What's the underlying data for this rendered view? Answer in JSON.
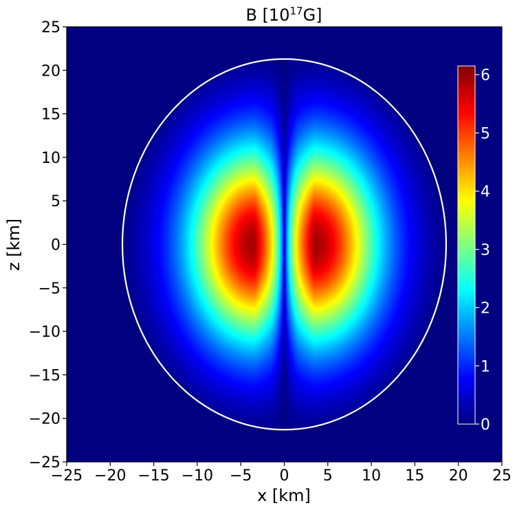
{
  "chart_data": {
    "type": "heatmap",
    "title_main": "B [10",
    "title_exp": "17",
    "title_tail": "G]",
    "xlabel": "x [km]",
    "ylabel": "z [km]",
    "xlim": [
      -25,
      25
    ],
    "ylim": [
      -25,
      25
    ],
    "xticks": [
      {
        "value": -25,
        "label": "−25"
      },
      {
        "value": -20,
        "label": "−20"
      },
      {
        "value": -15,
        "label": "−15"
      },
      {
        "value": -10,
        "label": "−10"
      },
      {
        "value": -5,
        "label": "−5"
      },
      {
        "value": 0,
        "label": "0"
      },
      {
        "value": 5,
        "label": "5"
      },
      {
        "value": 10,
        "label": "10"
      },
      {
        "value": 15,
        "label": "15"
      },
      {
        "value": 20,
        "label": "20"
      },
      {
        "value": 25,
        "label": "25"
      }
    ],
    "yticks": [
      {
        "value": 25,
        "label": "25"
      },
      {
        "value": 20,
        "label": "20"
      },
      {
        "value": 15,
        "label": "15"
      },
      {
        "value": 10,
        "label": "10"
      },
      {
        "value": 5,
        "label": "5"
      },
      {
        "value": 0,
        "label": "0"
      },
      {
        "value": -5,
        "label": "−5"
      },
      {
        "value": -10,
        "label": "−10"
      },
      {
        "value": -15,
        "label": "−15"
      },
      {
        "value": -20,
        "label": "−20"
      },
      {
        "value": -25,
        "label": "−25"
      }
    ],
    "colormap": "jet",
    "colorbar": {
      "range": [
        0,
        6.15
      ],
      "ticks": [
        {
          "value": 0,
          "label": "0"
        },
        {
          "value": 1,
          "label": "1"
        },
        {
          "value": 2,
          "label": "2"
        },
        {
          "value": 3,
          "label": "3"
        },
        {
          "value": 4,
          "label": "4"
        },
        {
          "value": 5,
          "label": "5"
        },
        {
          "value": 6,
          "label": "6"
        }
      ]
    },
    "surface": {
      "semi_axis_x": 18.6,
      "semi_axis_z": 21.3,
      "color": "#ffffff"
    },
    "field_peaks": [
      {
        "x": -3.4,
        "z": 0,
        "value": 6.1
      },
      {
        "x": 3.4,
        "z": 0,
        "value": 6.1
      }
    ],
    "background_color": "#00007f",
    "grid": false
  }
}
